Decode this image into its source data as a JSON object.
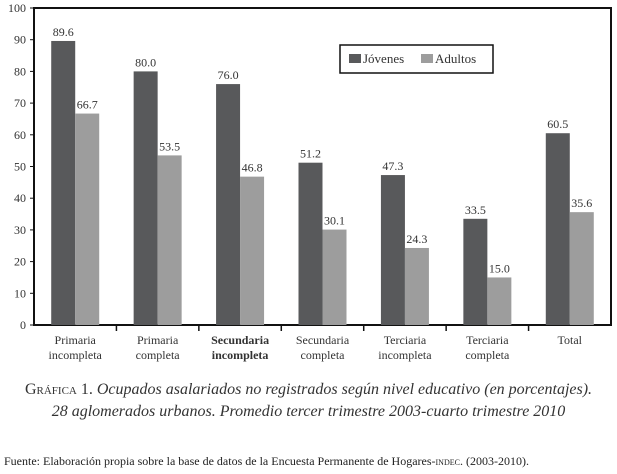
{
  "chart_data": {
    "type": "bar",
    "categories": [
      [
        "Primaria",
        "incompleta"
      ],
      [
        "Primaria",
        "completa"
      ],
      [
        "Secundaria",
        "incompleta"
      ],
      [
        "Secundaria",
        "completa"
      ],
      [
        "Terciaria",
        "incompleta"
      ],
      [
        "Terciaria",
        "completa"
      ],
      [
        "Total"
      ]
    ],
    "series": [
      {
        "name": "Jóvenes",
        "color": "#58595b",
        "values": [
          89.6,
          80.0,
          76.0,
          51.2,
          47.3,
          33.5,
          60.5
        ],
        "labels": [
          "89.6",
          "80.0",
          "76.0",
          "51.2",
          "47.3",
          "33.5",
          "60.5"
        ]
      },
      {
        "name": "Adultos",
        "color": "#9d9d9d",
        "values": [
          66.7,
          53.5,
          46.8,
          30.1,
          24.3,
          15.0,
          35.6
        ],
        "labels": [
          "66.7",
          "53.5",
          "46.8",
          "30.1",
          "24.3",
          "15.0",
          "35.6"
        ]
      }
    ],
    "ylim": [
      0,
      100
    ],
    "yticks": [
      "0",
      "10",
      "20",
      "30",
      "40",
      "50",
      "60",
      "70",
      "80",
      "90",
      "100"
    ],
    "legend": "top-center",
    "grid": false
  },
  "caption": {
    "label": "Gráfica 1.",
    "line1": "Ocupados asalariados no registrados según nivel educativo (en porcentajes).",
    "line2": "28 aglomerados urbanos. Promedio tercer trimestre 2003-cuarto trimestre 2010"
  },
  "source": {
    "label": "Fuente:",
    "text": "Elaboración propia sobre la base de datos de la Encuesta Permanente de Hogares-",
    "abbr": "indec",
    "tail": ". (2003-2010)."
  }
}
